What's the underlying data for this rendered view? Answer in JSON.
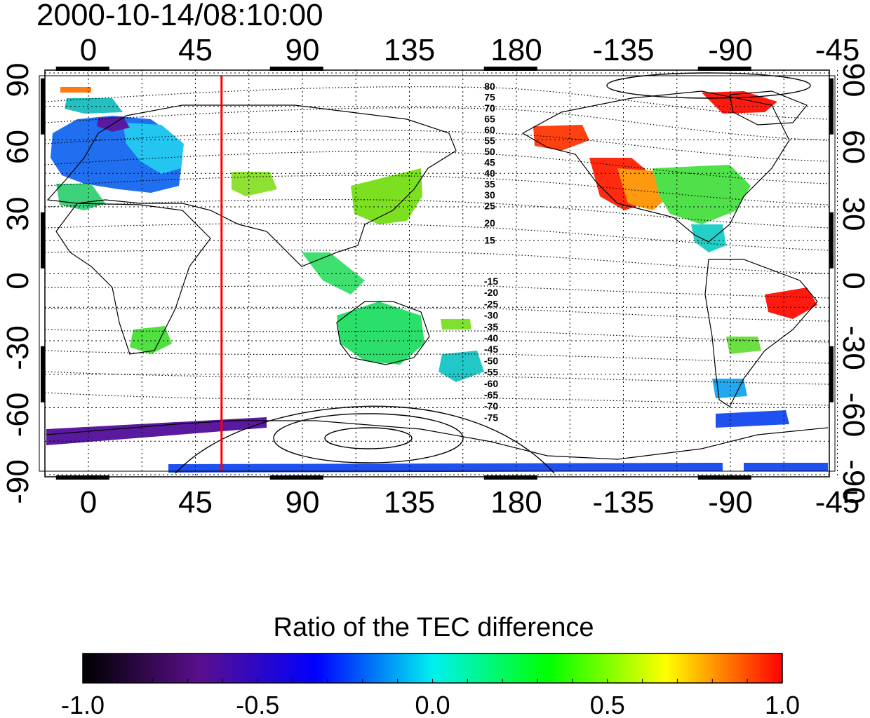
{
  "timestamp": "2000-10-14/08:10:00",
  "map": {
    "top_longitude_labels": [
      "0",
      "45",
      "90",
      "135",
      "180",
      "-135",
      "-90",
      "-45"
    ],
    "bottom_longitude_labels": [
      "0",
      "45",
      "90",
      "135",
      "180",
      "-135",
      "-90",
      "-45"
    ],
    "left_latitude_labels": [
      "90",
      "60",
      "30",
      "0",
      "-30",
      "-60",
      "-90"
    ],
    "right_latitude_labels": [
      "90",
      "60",
      "30",
      "0",
      "-30",
      "-60",
      "-90"
    ],
    "contour_labels_north": [
      "80",
      "75",
      "70",
      "65",
      "60",
      "55",
      "50",
      "45",
      "40",
      "35",
      "30",
      "25",
      "20",
      "15"
    ],
    "contour_labels_south": [
      "-15",
      "-20",
      "-25",
      "-30",
      "-35",
      "-40",
      "-45",
      "-50",
      "-55",
      "-60",
      "-65",
      "-70",
      "-75"
    ],
    "marker_line_longitude": 56,
    "marker_line_color": "#ff0000",
    "grid": true
  },
  "colorbar": {
    "title": "Ratio of the TEC difference",
    "tick_labels": [
      "-1.0",
      "-0.5",
      "0.0",
      "0.5",
      "1.0"
    ],
    "range": [
      -1.0,
      1.0
    ],
    "colormap": [
      "#000000",
      "#5a0f8c",
      "#0000ff",
      "#00f0f0",
      "#00ff00",
      "#ffff00",
      "#ff0000"
    ]
  }
}
